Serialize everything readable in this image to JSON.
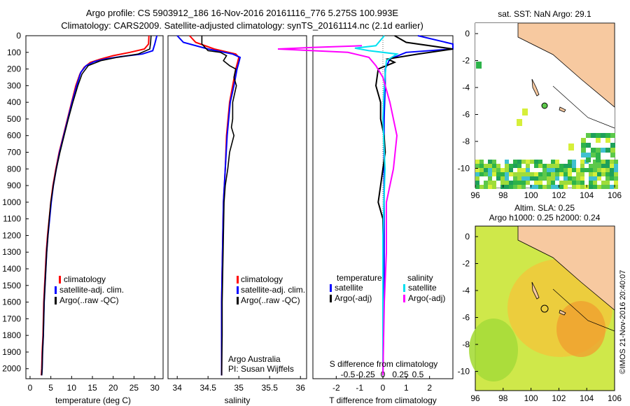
{
  "header": {
    "line1": "Argo profile: CS 5903912_186 16-Nov-2016 20161116_776 5.275S 100.993E",
    "line2": "Climatology: CARS2009. Satellite-adjusted climatology: synTS_20161114.nc (2.1d earlier)"
  },
  "colors": {
    "clim": "#ff0000",
    "sat": "#0000ff",
    "argo": "#000000",
    "sat_s": "#00e0f0",
    "argo_s": "#ff00ff",
    "land": "#f7c9a0",
    "sst_bg": "#ffffff",
    "sla_bg": "#cfe84a"
  },
  "depth_axis": {
    "ticks": [
      0,
      100,
      200,
      300,
      400,
      500,
      600,
      700,
      800,
      900,
      1000,
      1100,
      1200,
      1300,
      1400,
      1500,
      1600,
      1700,
      1800,
      1900,
      2000
    ],
    "max": 2060
  },
  "panels": {
    "temperature": {
      "xlabel": "temperature (deg C)",
      "xticks": [
        "0",
        "5",
        "10",
        "15",
        "20",
        "25",
        "30"
      ],
      "xlim": [
        -1,
        32
      ],
      "legend": [
        "climatology",
        "satellite-adj. clim.",
        "Argo(..raw -QC)"
      ]
    },
    "salinity": {
      "xlabel": "salinity",
      "xticks": [
        "34",
        "34.5",
        "35",
        "35.5",
        "36"
      ],
      "xlim": [
        33.85,
        36.1
      ],
      "legend": [
        "climatology",
        "satellite-adj. clim.",
        "Argo(..raw -QC)"
      ],
      "note1": "Argo Australia",
      "note2": "PI: Susan Wijffels"
    },
    "difference": {
      "xlabel": "T difference from climatology",
      "s_label": "S difference from climatology",
      "xticks": [
        "-2",
        "-1",
        "0",
        "1",
        "2"
      ],
      "s_ticks": [
        "-0.5",
        "-0.25",
        "0",
        "0.25",
        "0.5"
      ],
      "xlim": [
        -3,
        3
      ],
      "legend_titles": [
        "temperature",
        "salinity"
      ],
      "legend_t": [
        "satellite",
        "Argo(-adj)"
      ],
      "legend_s": [
        "satellite",
        "Argo(-adj)"
      ]
    }
  },
  "map_sst": {
    "title": "sat. SST: NaN Argo: 29.1",
    "xticks": [
      "96",
      "98",
      "100",
      "102",
      "104",
      "106"
    ],
    "yticks": [
      "0",
      "-2",
      "-4",
      "-6",
      "-8",
      "-10"
    ]
  },
  "map_sla": {
    "title1": "Altim. SLA: 0.25",
    "title2": "Argo h1000: 0.25 h2000: 0.24",
    "xticks": [
      "96",
      "98",
      "100",
      "102",
      "104",
      "106"
    ],
    "yticks": [
      "0",
      "-2",
      "-4",
      "-6",
      "-8",
      "-10"
    ]
  },
  "credit": "©IMOS 21-Nov-2016 20:40:07",
  "chart_data": [
    {
      "type": "line",
      "xlabel": "temperature (deg C)",
      "ylabel": "",
      "ylim": [
        2060,
        0
      ],
      "xlim": [
        -1,
        32
      ],
      "series": [
        {
          "name": "climatology",
          "points": [
            [
              28.6,
              0
            ],
            [
              28.5,
              50
            ],
            [
              27.5,
              80
            ],
            [
              24,
              100
            ],
            [
              20,
              120
            ],
            [
              17,
              140
            ],
            [
              14.5,
              160
            ],
            [
              13,
              190
            ],
            [
              12,
              230
            ],
            [
              11,
              300
            ],
            [
              10,
              400
            ],
            [
              9,
              500
            ],
            [
              8,
              600
            ],
            [
              7,
              700
            ],
            [
              6.2,
              800
            ],
            [
              5.5,
              900
            ],
            [
              5,
              1000
            ],
            [
              4.6,
              1100
            ],
            [
              4.2,
              1200
            ],
            [
              3.9,
              1300
            ],
            [
              3.7,
              1400
            ],
            [
              3.5,
              1500
            ],
            [
              3.3,
              1600
            ],
            [
              3.1,
              1800
            ],
            [
              2.9,
              1900
            ],
            [
              2.8,
              2000
            ],
            [
              2.7,
              2040
            ]
          ]
        },
        {
          "name": "satellite-adj. clim.",
          "points": [
            [
              30.5,
              0
            ],
            [
              30,
              50
            ],
            [
              29.5,
              90
            ],
            [
              27,
              110
            ],
            [
              22,
              125
            ],
            [
              18,
              140
            ],
            [
              15.5,
              155
            ],
            [
              13.5,
              180
            ],
            [
              12.2,
              220
            ],
            [
              11.2,
              300
            ],
            [
              10.1,
              400
            ],
            [
              9.1,
              500
            ],
            [
              8.1,
              600
            ],
            [
              7.1,
              700
            ],
            [
              6.3,
              800
            ],
            [
              5.6,
              900
            ],
            [
              5.1,
              1000
            ],
            [
              4.7,
              1100
            ],
            [
              4.3,
              1200
            ],
            [
              4,
              1300
            ],
            [
              3.8,
              1400
            ],
            [
              3.6,
              1500
            ],
            [
              3.4,
              1600
            ],
            [
              3.2,
              1800
            ],
            [
              3,
              1900
            ],
            [
              2.9,
              2000
            ],
            [
              2.8,
              2040
            ]
          ]
        },
        {
          "name": "Argo(..raw -QC)",
          "points": [
            [
              29.1,
              0
            ],
            [
              29,
              40
            ],
            [
              28.8,
              80
            ],
            [
              26,
              110
            ],
            [
              21,
              130
            ],
            [
              17,
              150
            ],
            [
              14,
              180
            ],
            [
              12.5,
              230
            ],
            [
              11.5,
              300
            ],
            [
              10.3,
              400
            ],
            [
              9.2,
              500
            ],
            [
              8.2,
              600
            ],
            [
              7.2,
              700
            ],
            [
              6.3,
              800
            ],
            [
              5.6,
              900
            ],
            [
              5,
              1000
            ],
            [
              4.6,
              1100
            ],
            [
              4.3,
              1200
            ],
            [
              4,
              1300
            ],
            [
              3.8,
              1400
            ],
            [
              3.6,
              1500
            ],
            [
              3.4,
              1600
            ],
            [
              3.2,
              1800
            ],
            [
              3,
              1900
            ],
            [
              2.9,
              2000
            ],
            [
              2.8,
              2040
            ]
          ]
        }
      ]
    },
    {
      "type": "line",
      "xlabel": "salinity",
      "ylabel": "",
      "ylim": [
        2060,
        0
      ],
      "xlim": [
        33.85,
        36.1
      ],
      "series": [
        {
          "name": "climatology",
          "points": [
            [
              34.2,
              0
            ],
            [
              34.3,
              40
            ],
            [
              34.6,
              80
            ],
            [
              34.95,
              110
            ],
            [
              35,
              130
            ],
            [
              34.98,
              160
            ],
            [
              34.95,
              200
            ],
            [
              34.9,
              300
            ],
            [
              34.85,
              400
            ],
            [
              34.8,
              600
            ],
            [
              34.78,
              800
            ],
            [
              34.75,
              1000
            ],
            [
              34.74,
              1200
            ],
            [
              34.73,
              1400
            ],
            [
              34.72,
              1600
            ],
            [
              34.72,
              1800
            ],
            [
              34.72,
              2040
            ]
          ]
        },
        {
          "name": "satellite-adj. clim.",
          "points": [
            [
              34,
              0
            ],
            [
              34.1,
              40
            ],
            [
              34.5,
              80
            ],
            [
              34.9,
              110
            ],
            [
              35.02,
              130
            ],
            [
              35,
              160
            ],
            [
              34.97,
              200
            ],
            [
              34.92,
              300
            ],
            [
              34.86,
              400
            ],
            [
              34.81,
              600
            ],
            [
              34.78,
              800
            ],
            [
              34.75,
              1000
            ],
            [
              34.74,
              1200
            ],
            [
              34.73,
              1400
            ],
            [
              34.72,
              1600
            ],
            [
              34.72,
              1800
            ],
            [
              34.72,
              2040
            ]
          ]
        },
        {
          "name": "Argo(..raw -QC)",
          "points": [
            [
              34.4,
              0
            ],
            [
              34.4,
              50
            ],
            [
              34.5,
              90
            ],
            [
              34.7,
              100
            ],
            [
              34.8,
              120
            ],
            [
              34.75,
              150
            ],
            [
              34.85,
              180
            ],
            [
              34.95,
              200
            ],
            [
              34.92,
              250
            ],
            [
              34.96,
              300
            ],
            [
              34.9,
              400
            ],
            [
              34.9,
              500
            ],
            [
              34.88,
              550
            ],
            [
              34.92,
              600
            ],
            [
              34.85,
              700
            ],
            [
              34.82,
              800
            ],
            [
              34.78,
              900
            ],
            [
              34.76,
              1000
            ],
            [
              34.75,
              1200
            ],
            [
              34.74,
              1400
            ],
            [
              34.73,
              1600
            ],
            [
              34.73,
              1800
            ],
            [
              34.72,
              2040
            ]
          ]
        }
      ]
    },
    {
      "type": "line",
      "xlabel": "T difference from climatology",
      "ylabel": "",
      "ylim": [
        2060,
        0
      ],
      "xlim": [
        -3,
        3
      ],
      "series": [
        {
          "name": "satellite",
          "points": [
            [
              1.5,
              0
            ],
            [
              3,
              50
            ],
            [
              3,
              80
            ],
            [
              1,
              100
            ],
            [
              0.3,
              140
            ],
            [
              0.1,
              200
            ],
            [
              0.1,
              300
            ],
            [
              0.05,
              500
            ],
            [
              0.05,
              800
            ],
            [
              0.05,
              1000
            ],
            [
              0.05,
              1500
            ],
            [
              0,
              2040
            ]
          ]
        },
        {
          "name": "Argo(-adj)",
          "points": [
            [
              0.5,
              0
            ],
            [
              1,
              40
            ],
            [
              3,
              80
            ],
            [
              1.5,
              110
            ],
            [
              0.2,
              140
            ],
            [
              0.5,
              160
            ],
            [
              -0.2,
              200
            ],
            [
              -0.3,
              300
            ],
            [
              -0.1,
              400
            ],
            [
              -0.1,
              500
            ],
            [
              0.05,
              600
            ],
            [
              0.1,
              700
            ],
            [
              0,
              800
            ],
            [
              -0.1,
              900
            ],
            [
              -0.2,
              1000
            ],
            [
              0,
              1100
            ],
            [
              0,
              1200
            ],
            [
              0,
              1400
            ],
            [
              0,
              1600
            ],
            [
              0,
              1800
            ],
            [
              0,
              2040
            ]
          ]
        }
      ]
    }
  ]
}
